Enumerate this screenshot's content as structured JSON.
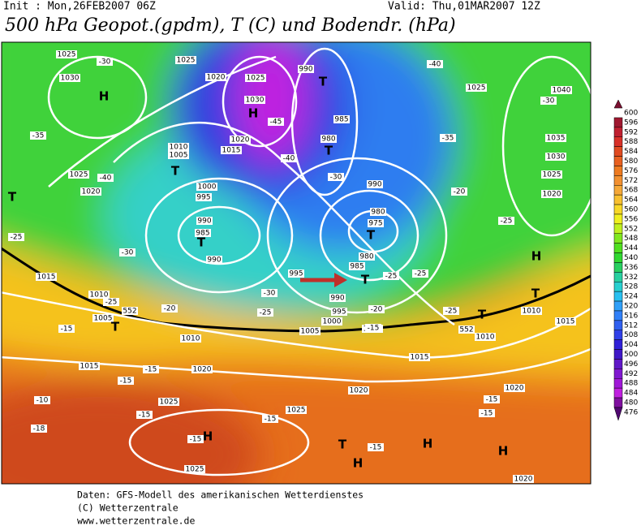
{
  "header": {
    "init": "Init : Mon,26FEB2007 06Z",
    "valid": "Valid: Thu,01MAR2007 12Z",
    "title": "500 hPa Geopot.(gpdm), T (C) und Bodendr. (hPa)"
  },
  "colorbar": {
    "labels": [
      "600",
      "596",
      "592",
      "588",
      "584",
      "580",
      "576",
      "572",
      "568",
      "564",
      "560",
      "556",
      "552",
      "548",
      "544",
      "540",
      "536",
      "532",
      "528",
      "524",
      "520",
      "516",
      "512",
      "508",
      "504",
      "500",
      "496",
      "492",
      "488",
      "484",
      "480",
      "476"
    ],
    "colors": [
      "#7a1030",
      "#a01830",
      "#c02030",
      "#d83028",
      "#e04a20",
      "#e86020",
      "#ee7a20",
      "#f29030",
      "#f5a838",
      "#f8c030",
      "#f8d828",
      "#f0f020",
      "#c0f020",
      "#80e820",
      "#50e020",
      "#30d830",
      "#28d060",
      "#28d0a0",
      "#28d0d0",
      "#28c0f0",
      "#30a0f8",
      "#3080f8",
      "#3060f0",
      "#3040e8",
      "#3020d8",
      "#4018c8",
      "#6018c8",
      "#8018d0",
      "#a018d8",
      "#c020e0",
      "#8010a0",
      "#500870"
    ]
  },
  "map": {
    "labels": [
      "1025",
      "-30",
      "1025",
      "1030",
      "H",
      "1020",
      "1025",
      "1030",
      "H",
      "-45",
      "990",
      "T",
      "985",
      "980",
      "T",
      "-35",
      "1010",
      "1005",
      "T",
      "1015",
      "1020",
      "-40",
      "1025",
      "1020",
      "-40",
      "T",
      "1000",
      "995",
      "990",
      "985",
      "T",
      "990",
      "-30",
      "-25",
      "1015",
      "1010",
      "-25",
      "1005",
      "T",
      "-15",
      "-20",
      "-25",
      "-30",
      "995",
      "990",
      "995",
      "1000",
      "1005",
      "985",
      "T",
      "980",
      "975",
      "980",
      "T",
      "990",
      "-30",
      "-35",
      "-40",
      "1025",
      "1040",
      "-30",
      "1035",
      "1030",
      "1025",
      "1020",
      "-25",
      "H",
      "T",
      "1010",
      "T",
      "1010",
      "1015",
      "1010",
      "1015",
      "1010",
      "1015",
      "1020",
      "-15",
      "-15",
      "-10",
      "1025",
      "-15",
      "-15",
      "1025",
      "-18",
      "H",
      "-15",
      "1020",
      "T",
      "H",
      "-15",
      "H",
      "H",
      "1020",
      "-15",
      "-15",
      "1025",
      "1020",
      "-20",
      "-25",
      "-25",
      "-20",
      "-25",
      "-15",
      "552",
      "552"
    ]
  },
  "footer": [
    "Daten: GFS-Modell des amerikanischen Wetterdienstes",
    "(C) Wetterzentrale",
    "www.wetterzentrale.de"
  ]
}
